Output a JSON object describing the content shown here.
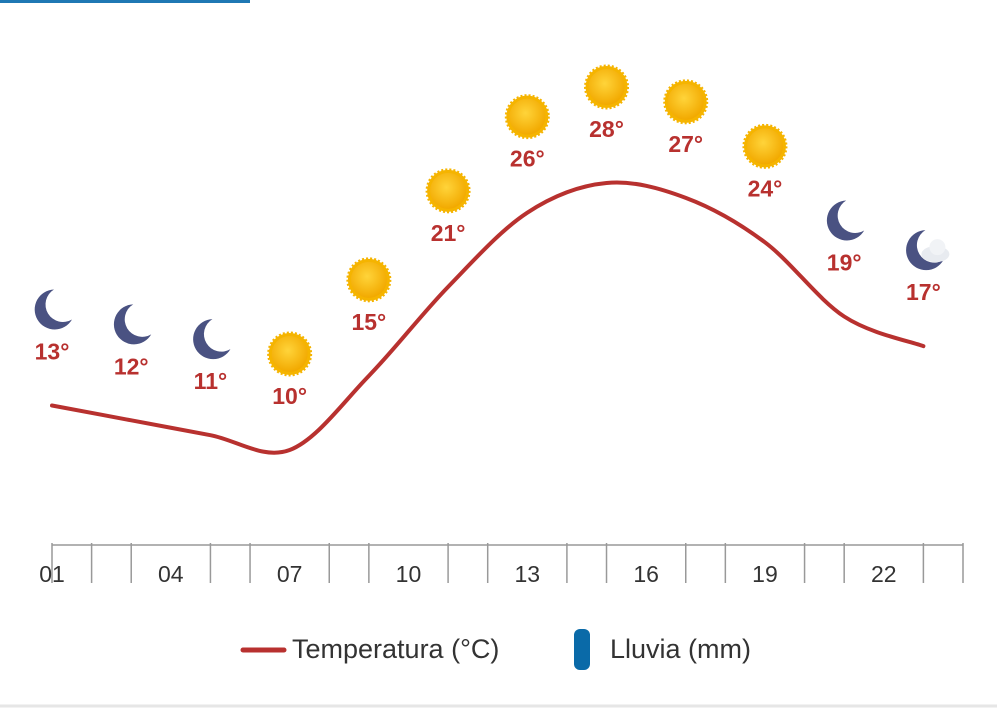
{
  "chart_data": {
    "type": "line",
    "x": [
      1,
      3,
      5,
      7,
      9,
      11,
      13,
      15,
      17,
      19,
      21,
      23
    ],
    "series": [
      {
        "name": "Temperatura (°C)",
        "color": "#b8312f",
        "values": [
          13,
          12,
          11,
          10,
          15,
          21,
          26,
          28,
          27,
          24,
          19,
          17
        ],
        "value_labels": [
          "13°",
          "12°",
          "11°",
          "10°",
          "15°",
          "21°",
          "26°",
          "28°",
          "27°",
          "24°",
          "19°",
          "17°"
        ],
        "icons": [
          "moon",
          "moon",
          "moon",
          "sun",
          "sun",
          "sun",
          "sun",
          "sun",
          "sun",
          "sun",
          "moon",
          "moon-cloud"
        ]
      },
      {
        "name": "Lluvia (mm)",
        "color": "#0a6aa8"
      }
    ],
    "xlim": [
      1,
      24
    ],
    "xticks": [
      {
        "value": 1,
        "label": "01"
      },
      {
        "value": 4,
        "label": "04"
      },
      {
        "value": 7,
        "label": "07"
      },
      {
        "value": 10,
        "label": "10"
      },
      {
        "value": 13,
        "label": "13"
      },
      {
        "value": 16,
        "label": "16"
      },
      {
        "value": 19,
        "label": "19"
      },
      {
        "value": 22,
        "label": "22"
      }
    ],
    "minor_xticks": [
      1,
      2,
      3,
      5,
      6,
      8,
      9,
      11,
      12,
      14,
      15,
      17,
      18,
      20,
      21,
      23,
      24
    ],
    "ylim": [
      10,
      28
    ]
  }
}
